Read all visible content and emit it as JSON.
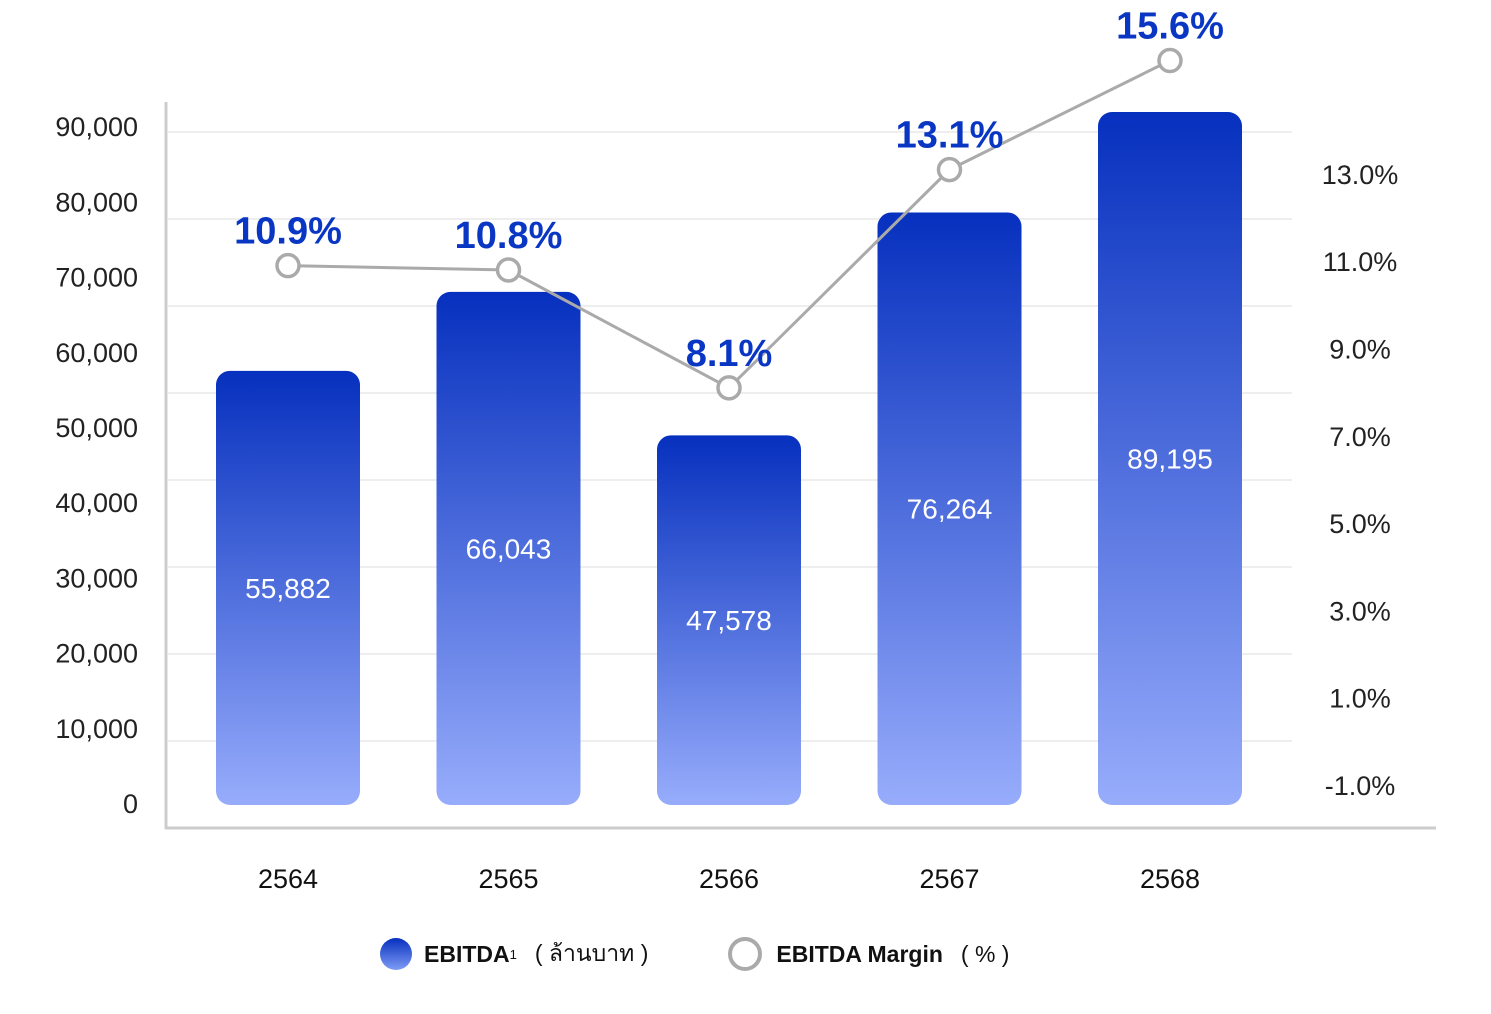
{
  "chart_data": {
    "type": "bar",
    "categories": [
      "2564",
      "2565",
      "2566",
      "2567",
      "2568"
    ],
    "series": [
      {
        "name": "EBITDA",
        "axis": "left",
        "type": "bar",
        "values": [
          55882,
          66043,
          47578,
          76264,
          89195
        ],
        "labels": [
          "55,882",
          "66,043",
          "47,578",
          "76,264",
          "89,195"
        ]
      },
      {
        "name": "EBITDA Margin",
        "axis": "right",
        "type": "line",
        "values": [
          10.9,
          10.8,
          8.1,
          13.1,
          15.6
        ],
        "labels": [
          "10.9%",
          "10.8%",
          "8.1%",
          "13.1%",
          "15.6%"
        ]
      }
    ],
    "left_axis": {
      "ylim": [
        0,
        90000
      ],
      "ticks": [
        "0",
        "10,000",
        "20,000",
        "30,000",
        "40,000",
        "50,000",
        "60,000",
        "70,000",
        "80,000",
        "90,000"
      ]
    },
    "right_axis": {
      "ylim": [
        -1,
        13
      ],
      "ticks": [
        "-1.0%",
        "1.0%",
        "3.0%",
        "5.0%",
        "7.0%",
        "9.0%",
        "11.0%",
        "13.0%"
      ]
    },
    "grid": true,
    "legend": {
      "placement": "bottom",
      "items": [
        {
          "name": "EBITDA",
          "sup": "1",
          "unit": "( ล้านบาท )"
        },
        {
          "name": "EBITDA Margin",
          "unit": "( % )"
        }
      ]
    },
    "colors": {
      "bar_top": "#0630be",
      "bar_bottom": "#97acfb",
      "line": "#aaaaaa",
      "margin_label": "#0a36c4"
    }
  }
}
